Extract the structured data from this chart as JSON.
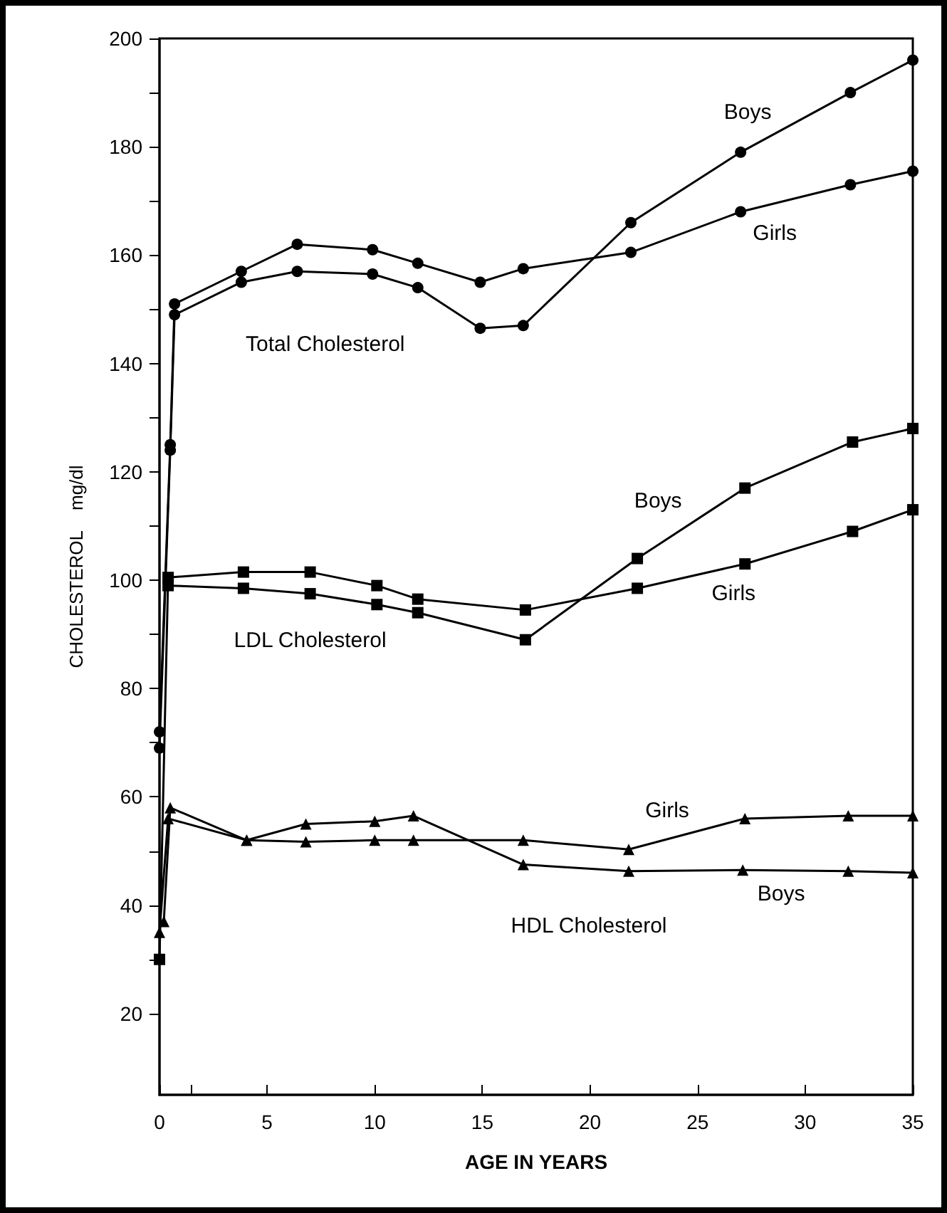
{
  "chart_data": {
    "type": "line",
    "xlabel": "AGE IN YEARS",
    "ylabel": "CHOLESTEROL    mg/dl",
    "xlim": [
      0,
      35
    ],
    "xticks": [
      0,
      {
        "value": 1.5,
        "label": null
      },
      5,
      10,
      15,
      20,
      25,
      30,
      35
    ],
    "ylim": [
      5,
      200
    ],
    "yticks": [
      20,
      {
        "value": 30,
        "label": null
      },
      40,
      {
        "value": 50,
        "label": null
      },
      60,
      {
        "value": 70,
        "label": null
      },
      80,
      {
        "value": 90,
        "label": null
      },
      100,
      {
        "value": 110,
        "label": null
      },
      120,
      {
        "value": 130,
        "label": null
      },
      140,
      {
        "value": 150,
        "label": null
      },
      160,
      {
        "value": 170,
        "label": null
      },
      180,
      {
        "value": 190,
        "label": null
      },
      200
    ],
    "grid": false,
    "legend": false,
    "line_style": "solid",
    "series": [
      {
        "name": "Boys",
        "color": "#000000",
        "marker": "circle",
        "x": [
          0,
          0.5,
          0.7,
          3.8,
          6.4,
          9.9,
          12,
          14.9,
          16.9,
          21.9,
          27,
          32.1,
          35
        ],
        "values": [
          69,
          124,
          149,
          155,
          157,
          156.5,
          154,
          146.5,
          147,
          166,
          179,
          190,
          196
        ]
      },
      {
        "name": "Girls",
        "color": "#000000",
        "marker": "circle",
        "x": [
          0,
          0.5,
          0.7,
          3.8,
          6.4,
          9.9,
          12,
          14.9,
          16.9,
          21.9,
          27,
          32.1,
          35
        ],
        "values": [
          72,
          125,
          151,
          157,
          162,
          161,
          158.5,
          155,
          157.5,
          160.5,
          168,
          173,
          175.5
        ]
      },
      {
        "name": "Boys",
        "color": "#000000",
        "marker": "square",
        "x": [
          0.4,
          3.9,
          7,
          10.1,
          12,
          17,
          22.2,
          27.2,
          32.2,
          35
        ],
        "values": [
          99,
          98.5,
          97.5,
          95.5,
          94,
          89,
          104,
          117,
          125.5,
          128
        ]
      },
      {
        "name": "Girls",
        "color": "#000000",
        "marker": "square",
        "x": [
          0,
          0.4,
          3.9,
          7,
          10.1,
          12,
          17,
          22.2,
          27.2,
          32.2,
          35
        ],
        "values": [
          30,
          100.5,
          101.5,
          101.5,
          99,
          96.5,
          94.5,
          98.5,
          103,
          109,
          113
        ]
      },
      {
        "name": "Boys",
        "color": "#000000",
        "marker": "triangle",
        "x": [
          0.2,
          0.5,
          4.05,
          6.8,
          10,
          11.8,
          16.9,
          21.8,
          27.1,
          32,
          35
        ],
        "values": [
          37,
          58,
          52,
          55,
          55.5,
          56.5,
          47.5,
          46.3,
          46.5,
          46.3,
          46
        ]
      },
      {
        "name": "Girls",
        "color": "#000000",
        "marker": "triangle",
        "x": [
          0,
          0.4,
          4.05,
          6.8,
          10,
          11.8,
          16.9,
          21.8,
          27.2,
          32,
          35
        ],
        "values": [
          35,
          56,
          52,
          51.7,
          52,
          52,
          52,
          50.3,
          56,
          56.5,
          56.5
        ]
      }
    ],
    "annotations": [
      "Total Cholesterol",
      "LDL Cholesterol",
      "HDL Cholesterol"
    ]
  }
}
